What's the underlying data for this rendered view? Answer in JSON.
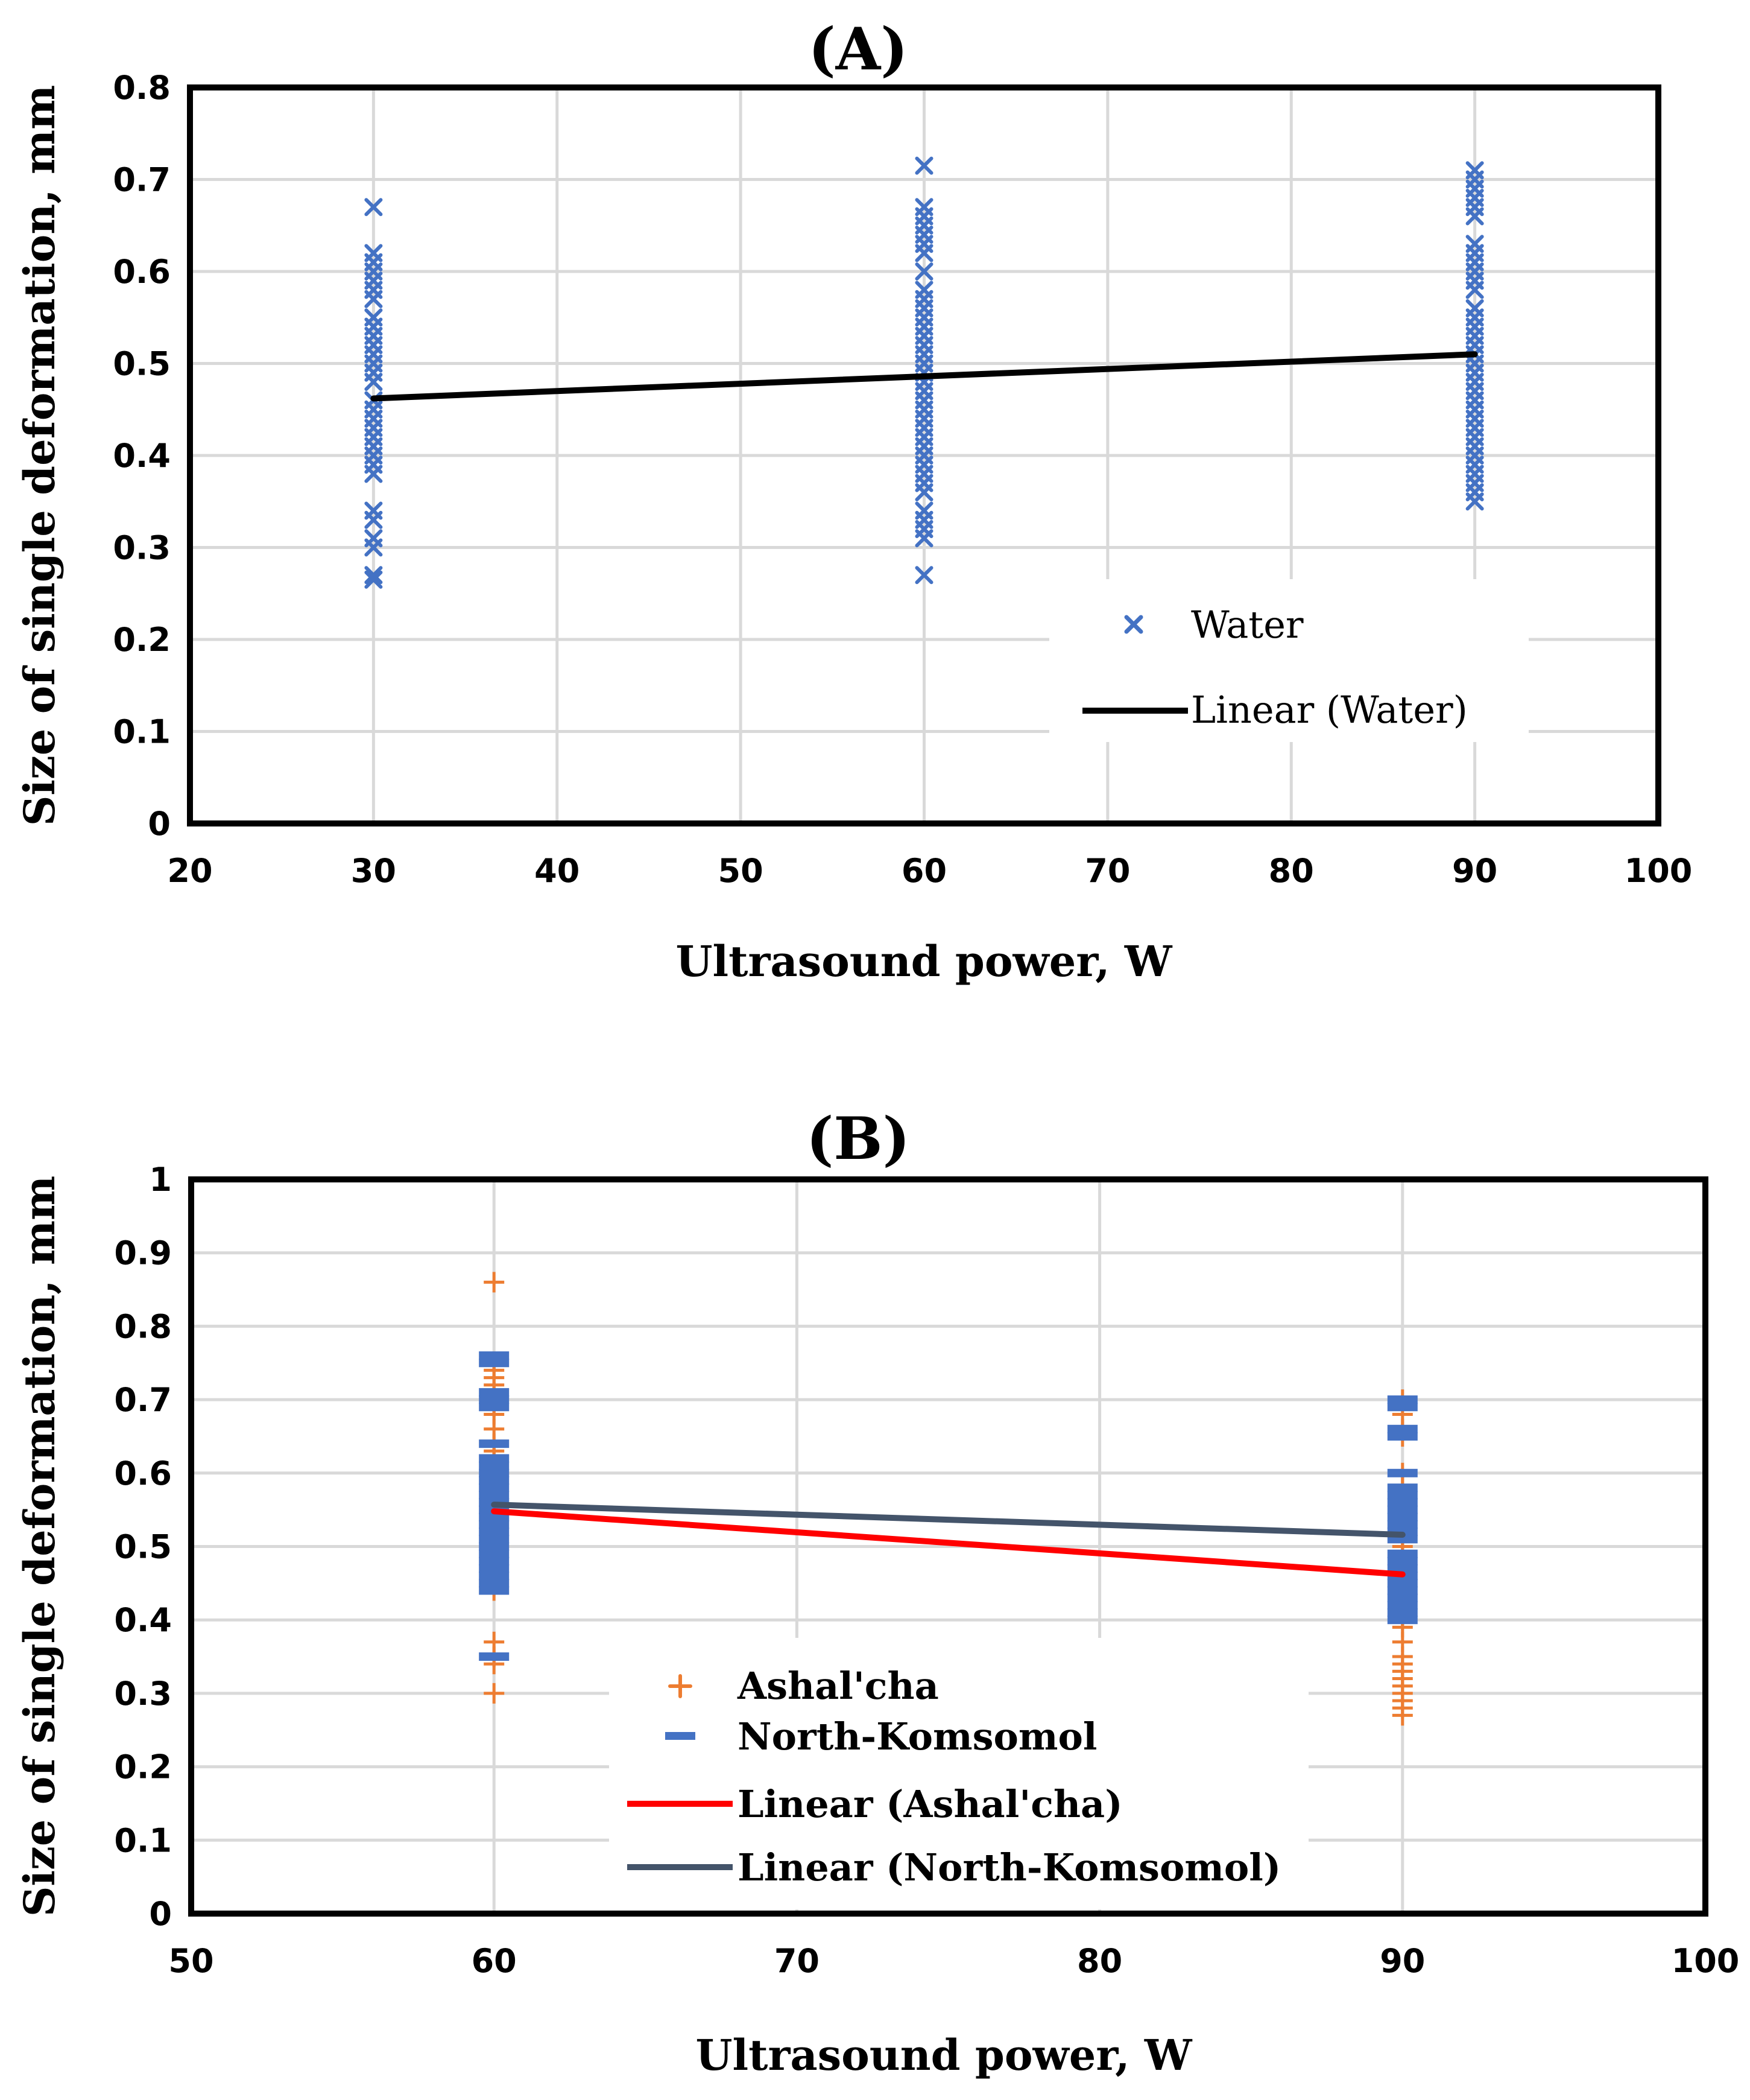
{
  "chart_data": [
    {
      "panel": "A",
      "type": "scatter",
      "title": "(A)",
      "xlabel": "Ultrasound power, W",
      "ylabel": "Size of single deformation, mm",
      "xlim": [
        20,
        100
      ],
      "ylim": [
        0,
        0.8
      ],
      "xticks": [
        20,
        30,
        40,
        50,
        60,
        70,
        80,
        90,
        100
      ],
      "yticks": [
        0,
        0.1,
        0.2,
        0.3,
        0.4,
        0.5,
        0.6,
        0.7,
        0.8
      ],
      "grid": true,
      "legend_position": "bottom-right",
      "series": [
        {
          "name": "Water",
          "marker": "x",
          "color": "#4472c4",
          "points": [
            {
              "x": 30,
              "values": [
                0.67,
                0.62,
                0.61,
                0.6,
                0.59,
                0.58,
                0.57,
                0.55,
                0.54,
                0.53,
                0.52,
                0.51,
                0.5,
                0.49,
                0.48,
                0.46,
                0.45,
                0.44,
                0.43,
                0.42,
                0.41,
                0.4,
                0.39,
                0.38,
                0.34,
                0.33,
                0.31,
                0.3,
                0.27,
                0.265
              ]
            },
            {
              "x": 60,
              "values": [
                0.715,
                0.67,
                0.66,
                0.65,
                0.64,
                0.63,
                0.62,
                0.6,
                0.58,
                0.57,
                0.56,
                0.55,
                0.54,
                0.53,
                0.52,
                0.51,
                0.5,
                0.49,
                0.48,
                0.47,
                0.46,
                0.45,
                0.44,
                0.43,
                0.42,
                0.41,
                0.4,
                0.39,
                0.38,
                0.37,
                0.36,
                0.34,
                0.33,
                0.32,
                0.31,
                0.27
              ]
            },
            {
              "x": 90,
              "values": [
                0.71,
                0.7,
                0.69,
                0.68,
                0.67,
                0.66,
                0.63,
                0.62,
                0.61,
                0.6,
                0.59,
                0.58,
                0.56,
                0.55,
                0.54,
                0.53,
                0.52,
                0.51,
                0.5,
                0.49,
                0.48,
                0.47,
                0.46,
                0.45,
                0.44,
                0.43,
                0.42,
                0.41,
                0.4,
                0.39,
                0.38,
                0.37,
                0.36,
                0.35
              ]
            }
          ]
        },
        {
          "name": "Linear (Water)",
          "type": "line",
          "color": "#000000",
          "x": [
            30,
            90
          ],
          "y": [
            0.462,
            0.51
          ]
        }
      ]
    },
    {
      "panel": "B",
      "type": "scatter",
      "title": "(B)",
      "xlabel": "Ultrasound power, W",
      "ylabel": "Size of single deformation, mm",
      "xlim": [
        50,
        100
      ],
      "ylim": [
        0,
        1
      ],
      "xticks": [
        50,
        60,
        70,
        80,
        90,
        100
      ],
      "yticks": [
        0,
        0.1,
        0.2,
        0.3,
        0.4,
        0.5,
        0.6,
        0.7,
        0.8,
        0.9,
        1
      ],
      "grid": true,
      "legend_position": "bottom-left",
      "series": [
        {
          "name": "Ashal'cha",
          "marker": "+",
          "color": "#ed7d31",
          "points": [
            {
              "x": 60,
              "values": [
                0.86,
                0.75,
                0.74,
                0.73,
                0.72,
                0.71,
                0.7,
                0.69,
                0.68,
                0.66,
                0.64,
                0.63,
                0.62,
                0.61,
                0.6,
                0.59,
                0.58,
                0.57,
                0.56,
                0.55,
                0.54,
                0.53,
                0.52,
                0.51,
                0.5,
                0.49,
                0.48,
                0.47,
                0.46,
                0.45,
                0.44,
                0.37,
                0.35,
                0.34,
                0.3
              ]
            },
            {
              "x": 90,
              "values": [
                0.7,
                0.68,
                0.66,
                0.65,
                0.6,
                0.58,
                0.56,
                0.55,
                0.54,
                0.53,
                0.52,
                0.5,
                0.49,
                0.48,
                0.47,
                0.46,
                0.45,
                0.44,
                0.43,
                0.42,
                0.41,
                0.4,
                0.39,
                0.37,
                0.35,
                0.34,
                0.33,
                0.32,
                0.31,
                0.3,
                0.29,
                0.28,
                0.27
              ]
            }
          ]
        },
        {
          "name": "North-Komsomol",
          "marker": "-",
          "color": "#4472c4",
          "points": [
            {
              "x": 60,
              "values": [
                0.76,
                0.75,
                0.71,
                0.7,
                0.69,
                0.64,
                0.62,
                0.61,
                0.6,
                0.59,
                0.58,
                0.57,
                0.56,
                0.55,
                0.54,
                0.53,
                0.52,
                0.51,
                0.5,
                0.49,
                0.48,
                0.47,
                0.46,
                0.45,
                0.44,
                0.35
              ]
            },
            {
              "x": 90,
              "values": [
                0.7,
                0.69,
                0.66,
                0.65,
                0.6,
                0.58,
                0.57,
                0.56,
                0.55,
                0.54,
                0.53,
                0.52,
                0.51,
                0.49,
                0.48,
                0.47,
                0.46,
                0.45,
                0.44,
                0.43,
                0.42,
                0.41,
                0.4
              ]
            }
          ]
        },
        {
          "name": "Linear (Ashal'cha)",
          "type": "line",
          "color": "#ff0000",
          "x": [
            60,
            90
          ],
          "y": [
            0.548,
            0.462
          ]
        },
        {
          "name": "Linear (North-Komsomol)",
          "type": "line",
          "color": "#44546a",
          "x": [
            60,
            90
          ],
          "y": [
            0.557,
            0.516
          ]
        }
      ]
    }
  ]
}
